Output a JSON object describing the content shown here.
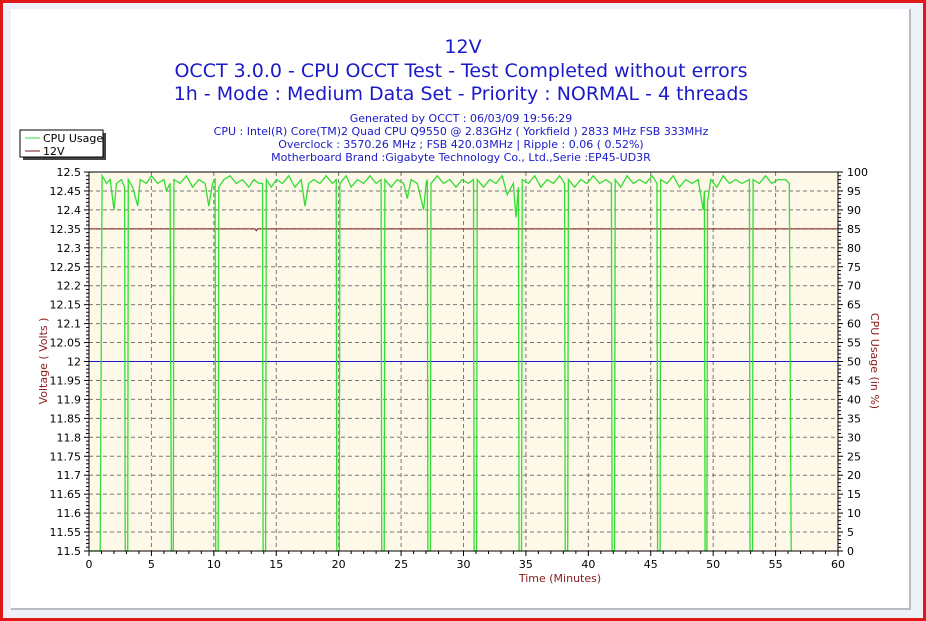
{
  "titles": {
    "line1": "12V",
    "line2": "OCCT 3.0.0 - CPU OCCT Test - Test Completed without errors",
    "line3": "1h - Mode : Medium Data Set - Priority : NORMAL - 4 threads"
  },
  "info": {
    "generated": "Generated by OCCT : 06/03/09 19:56:29",
    "cpu": "CPU : Intel(R) Core(TM)2 Quad CPU Q9550 @ 2.83GHz ( Yorkfield ) 2833 MHz FSB 333MHz",
    "overclock": "Overclock : 3570.26 MHz ; FSB 420.03MHz | Ripple : 0.06 ( 0.52%)",
    "motherboard": "Motherboard Brand :Gigabyte Technology Co., Ltd.,Serie :EP45-UD3R"
  },
  "colors": {
    "cpu": "#33dd33",
    "voltage": "#7a1a1a",
    "reference": "#1a1ac8",
    "plot_bg": "#fdf8e8",
    "title": "#1a1ac8",
    "axis_label": "#8b1a1a"
  },
  "chart_data": {
    "type": "line",
    "xlabel": "Time (Minutes)",
    "ylabel": "Voltage ( Volts )",
    "y2label": "CPU Usage (in %)",
    "xlim": [
      0,
      60
    ],
    "ylim": [
      11.5,
      12.5
    ],
    "y2lim": [
      0,
      100
    ],
    "xticks": [
      "0",
      "5",
      "10",
      "15",
      "20",
      "25",
      "30",
      "35",
      "40",
      "45",
      "50",
      "55",
      "60"
    ],
    "yticks": [
      "11.5",
      "11.55",
      "11.6",
      "11.65",
      "11.7",
      "11.75",
      "11.8",
      "11.85",
      "11.9",
      "11.95",
      "12",
      "12.05",
      "12.1",
      "12.15",
      "12.2",
      "12.25",
      "12.3",
      "12.35",
      "12.4",
      "12.45",
      "12.5"
    ],
    "y2ticks": [
      "0",
      "5",
      "10",
      "15",
      "20",
      "25",
      "30",
      "35",
      "40",
      "45",
      "50",
      "55",
      "60",
      "65",
      "70",
      "75",
      "80",
      "85",
      "90",
      "95",
      "100"
    ],
    "grid": true,
    "legend": {
      "position": "top-left",
      "entries": [
        "CPU Usage",
        "12V"
      ]
    },
    "reference_line": 12.0,
    "series": [
      {
        "name": "12V",
        "axis": "left",
        "points": [
          [
            0.1,
            12.35
          ],
          [
            13.3,
            12.35
          ],
          [
            13.4,
            12.345
          ],
          [
            13.5,
            12.35
          ],
          [
            60,
            12.35
          ]
        ]
      },
      {
        "name": "CPU Usage",
        "axis": "right",
        "points": [
          [
            0,
            0
          ],
          [
            0.9,
            0
          ],
          [
            1.05,
            99
          ],
          [
            1.4,
            97
          ],
          [
            1.7,
            98
          ],
          [
            2.0,
            90
          ],
          [
            2.2,
            97
          ],
          [
            2.6,
            98
          ],
          [
            2.85,
            96
          ],
          [
            2.9,
            0
          ],
          [
            3.1,
            0
          ],
          [
            3.15,
            98
          ],
          [
            3.5,
            96
          ],
          [
            3.9,
            91
          ],
          [
            4.1,
            98
          ],
          [
            4.6,
            97
          ],
          [
            5.0,
            99
          ],
          [
            5.5,
            97
          ],
          [
            6.0,
            98
          ],
          [
            6.2,
            95
          ],
          [
            6.5,
            97
          ],
          [
            6.6,
            0
          ],
          [
            6.75,
            0
          ],
          [
            6.8,
            98
          ],
          [
            7.3,
            97
          ],
          [
            7.8,
            99
          ],
          [
            8.3,
            96
          ],
          [
            8.8,
            98
          ],
          [
            9.3,
            97
          ],
          [
            9.6,
            91
          ],
          [
            9.9,
            97
          ],
          [
            10.1,
            98
          ],
          [
            10.15,
            0
          ],
          [
            10.35,
            0
          ],
          [
            10.4,
            96
          ],
          [
            10.8,
            98
          ],
          [
            11.3,
            99
          ],
          [
            11.8,
            97
          ],
          [
            12.3,
            98
          ],
          [
            12.8,
            96
          ],
          [
            13.2,
            98
          ],
          [
            13.6,
            97
          ],
          [
            13.9,
            97
          ],
          [
            13.95,
            0
          ],
          [
            14.15,
            0
          ],
          [
            14.2,
            98
          ],
          [
            14.6,
            96
          ],
          [
            15.0,
            98
          ],
          [
            15.5,
            97
          ],
          [
            16.0,
            99
          ],
          [
            16.5,
            96
          ],
          [
            17.0,
            98
          ],
          [
            17.3,
            91
          ],
          [
            17.6,
            97
          ],
          [
            18.0,
            98
          ],
          [
            18.5,
            97
          ],
          [
            19.0,
            99
          ],
          [
            19.5,
            97
          ],
          [
            19.8,
            98
          ],
          [
            19.85,
            0
          ],
          [
            20.05,
            0
          ],
          [
            20.1,
            97
          ],
          [
            20.6,
            99
          ],
          [
            21.0,
            96
          ],
          [
            21.5,
            98
          ],
          [
            22.0,
            97
          ],
          [
            22.5,
            99
          ],
          [
            23.0,
            97
          ],
          [
            23.4,
            98
          ],
          [
            23.45,
            0
          ],
          [
            23.65,
            0
          ],
          [
            23.7,
            98
          ],
          [
            24.2,
            96
          ],
          [
            24.7,
            98
          ],
          [
            25.2,
            97
          ],
          [
            25.5,
            93
          ],
          [
            25.8,
            98
          ],
          [
            26.3,
            97
          ],
          [
            26.8,
            90
          ],
          [
            27.0,
            97
          ],
          [
            27.1,
            98
          ],
          [
            27.15,
            0
          ],
          [
            27.35,
            0
          ],
          [
            27.4,
            97
          ],
          [
            27.9,
            99
          ],
          [
            28.4,
            97
          ],
          [
            28.9,
            98
          ],
          [
            29.4,
            96
          ],
          [
            29.9,
            98
          ],
          [
            30.4,
            97
          ],
          [
            30.8,
            98
          ],
          [
            30.85,
            0
          ],
          [
            31.05,
            0
          ],
          [
            31.1,
            98
          ],
          [
            31.6,
            96
          ],
          [
            32.1,
            98
          ],
          [
            32.6,
            97
          ],
          [
            33.1,
            99
          ],
          [
            33.5,
            94
          ],
          [
            34.0,
            97
          ],
          [
            34.2,
            88
          ],
          [
            34.4,
            96
          ],
          [
            34.45,
            0
          ],
          [
            34.65,
            0
          ],
          [
            34.7,
            98
          ],
          [
            35.2,
            97
          ],
          [
            35.7,
            99
          ],
          [
            36.2,
            96
          ],
          [
            36.7,
            98
          ],
          [
            37.2,
            97
          ],
          [
            37.7,
            99
          ],
          [
            38.1,
            97
          ],
          [
            38.15,
            0
          ],
          [
            38.35,
            0
          ],
          [
            38.4,
            98
          ],
          [
            38.9,
            96
          ],
          [
            39.4,
            98
          ],
          [
            39.9,
            97
          ],
          [
            40.4,
            99
          ],
          [
            40.9,
            97
          ],
          [
            41.4,
            98
          ],
          [
            41.85,
            97
          ],
          [
            41.9,
            0
          ],
          [
            42.1,
            0
          ],
          [
            42.15,
            98
          ],
          [
            42.6,
            96
          ],
          [
            43.1,
            99
          ],
          [
            43.6,
            97
          ],
          [
            44.1,
            98
          ],
          [
            44.6,
            97
          ],
          [
            45.1,
            99
          ],
          [
            45.5,
            97
          ],
          [
            45.55,
            0
          ],
          [
            45.75,
            0
          ],
          [
            45.8,
            98
          ],
          [
            46.3,
            97
          ],
          [
            46.8,
            99
          ],
          [
            47.3,
            96
          ],
          [
            47.8,
            98
          ],
          [
            48.3,
            97
          ],
          [
            48.8,
            98
          ],
          [
            49.2,
            90
          ],
          [
            49.3,
            95
          ],
          [
            49.35,
            0
          ],
          [
            49.5,
            0
          ],
          [
            49.55,
            92
          ],
          [
            49.8,
            98
          ],
          [
            50.3,
            96
          ],
          [
            50.8,
            99
          ],
          [
            51.3,
            97
          ],
          [
            51.8,
            98
          ],
          [
            52.3,
            97
          ],
          [
            52.9,
            98
          ],
          [
            52.95,
            0
          ],
          [
            53.15,
            0
          ],
          [
            53.2,
            98
          ],
          [
            53.7,
            97
          ],
          [
            54.2,
            99
          ],
          [
            54.7,
            97
          ],
          [
            55.2,
            98
          ],
          [
            55.8,
            98
          ],
          [
            56.1,
            97
          ],
          [
            56.25,
            0
          ],
          [
            56.3,
            0
          ]
        ]
      }
    ]
  }
}
